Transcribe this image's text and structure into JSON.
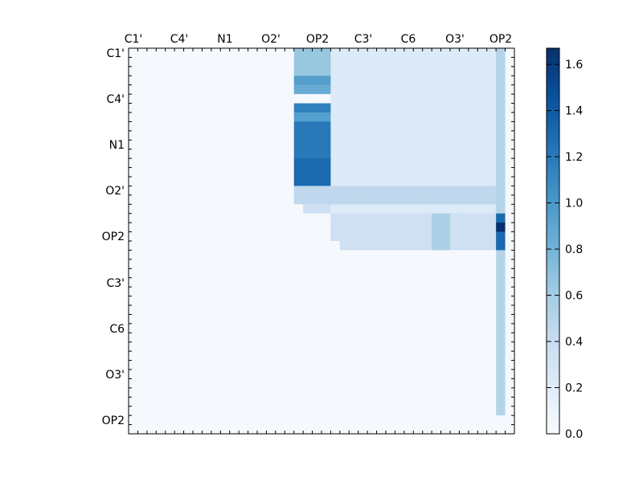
{
  "chart_data": {
    "type": "heatmap",
    "title": "",
    "xlabel": "",
    "ylabel": "",
    "x_tick_labels": [
      "C1'",
      "C4'",
      "N1",
      "O2'",
      "OP2",
      "C3'",
      "C6",
      "O3'",
      "OP2"
    ],
    "y_tick_labels": [
      "C1'",
      "C4'",
      "N1",
      "O2'",
      "OP2",
      "C3'",
      "C6",
      "O3'",
      "OP2"
    ],
    "x_axis_position": "top",
    "colorbar": {
      "ticks": [
        "0.0",
        "0.2",
        "0.4",
        "0.6",
        "0.8",
        "1.0",
        "1.2",
        "1.4",
        "1.6"
      ],
      "range": [
        0,
        1.67
      ],
      "colormap": "Blues",
      "position": "right"
    },
    "n": 42,
    "grid": false,
    "zero_value": 0.02,
    "blocks": [
      {
        "rows": [
          0,
          17
        ],
        "cols": [
          18,
          21
        ],
        "value": 0.95,
        "note": "OP2 column band"
      },
      {
        "rows": [
          0,
          2
        ],
        "cols": [
          18,
          21
        ],
        "value": 0.65
      },
      {
        "rows": [
          4,
          4
        ],
        "cols": [
          18,
          21
        ],
        "value": 0.85
      },
      {
        "rows": [
          5,
          5
        ],
        "cols": [
          18,
          21
        ],
        "value": 0.02
      },
      {
        "rows": [
          6,
          6
        ],
        "cols": [
          18,
          21
        ],
        "value": 1.15
      },
      {
        "rows": [
          8,
          11
        ],
        "cols": [
          18,
          21
        ],
        "value": 1.2
      },
      {
        "rows": [
          12,
          14
        ],
        "cols": [
          18,
          21
        ],
        "value": 1.3
      },
      {
        "rows": [
          15,
          15
        ],
        "cols": [
          18,
          21
        ],
        "value": 0.85
      },
      {
        "rows": [
          16,
          17
        ],
        "cols": [
          18,
          21
        ],
        "value": 0.35
      },
      {
        "rows": [
          0,
          17
        ],
        "cols": [
          22,
          39
        ],
        "value": 0.22
      },
      {
        "rows": [
          15,
          16
        ],
        "cols": [
          18,
          39
        ],
        "value": 0.45
      },
      {
        "rows": [
          18,
          21
        ],
        "cols": [
          22,
          39
        ],
        "value": 0.35
      },
      {
        "rows": [
          18,
          21
        ],
        "cols": [
          33,
          34
        ],
        "value": 0.55
      },
      {
        "rows": [
          0,
          39
        ],
        "cols": [
          40,
          40
        ],
        "value": 0.5
      },
      {
        "rows": [
          18,
          21
        ],
        "cols": [
          40,
          40
        ],
        "value": 1.3
      },
      {
        "rows": [
          19,
          19
        ],
        "cols": [
          40,
          40
        ],
        "value": 1.67
      }
    ]
  }
}
